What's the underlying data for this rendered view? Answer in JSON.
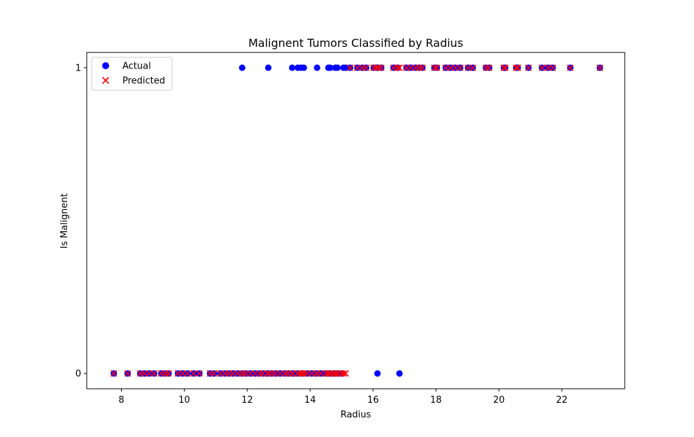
{
  "chart_data": {
    "type": "scatter",
    "title": "Malignent Tumors Classified by Radius",
    "xlabel": "Radius",
    "ylabel": "Is Malignent",
    "xlim": [
      6.9,
      24.0
    ],
    "ylim": [
      -0.05,
      1.05
    ],
    "xticks": [
      "8",
      "10",
      "12",
      "14",
      "16",
      "18",
      "20",
      "22"
    ],
    "yticks": [
      "0",
      "1"
    ],
    "grid": false,
    "legend_position": "top-left",
    "series": [
      {
        "name": "Actual",
        "marker": "circle",
        "color": "#0000ff",
        "points": [
          [
            11.84,
            1
          ],
          [
            12.67,
            1
          ],
          [
            13.43,
            1
          ],
          [
            13.61,
            1
          ],
          [
            13.71,
            1
          ],
          [
            13.8,
            1
          ],
          [
            14.22,
            1
          ],
          [
            14.58,
            1
          ],
          [
            14.64,
            1
          ],
          [
            14.8,
            1
          ],
          [
            14.87,
            1
          ],
          [
            15.06,
            1
          ],
          [
            15.13,
            1
          ],
          [
            15.27,
            1
          ],
          [
            15.5,
            1
          ],
          [
            15.66,
            1
          ],
          [
            15.78,
            1
          ],
          [
            16.02,
            1
          ],
          [
            16.11,
            1
          ],
          [
            16.16,
            1
          ],
          [
            16.26,
            1
          ],
          [
            16.65,
            1
          ],
          [
            16.78,
            1
          ],
          [
            17.06,
            1
          ],
          [
            17.2,
            1
          ],
          [
            17.35,
            1
          ],
          [
            17.47,
            1
          ],
          [
            17.57,
            1
          ],
          [
            17.95,
            1
          ],
          [
            18.03,
            1
          ],
          [
            18.31,
            1
          ],
          [
            18.46,
            1
          ],
          [
            18.61,
            1
          ],
          [
            18.77,
            1
          ],
          [
            19.02,
            1
          ],
          [
            19.17,
            1
          ],
          [
            19.59,
            1
          ],
          [
            19.69,
            1
          ],
          [
            20.16,
            1
          ],
          [
            20.2,
            1
          ],
          [
            20.55,
            1
          ],
          [
            20.6,
            1
          ],
          [
            20.94,
            1
          ],
          [
            21.37,
            1
          ],
          [
            21.56,
            1
          ],
          [
            21.71,
            1
          ],
          [
            22.27,
            1
          ],
          [
            23.21,
            1
          ],
          [
            16.14,
            0
          ],
          [
            16.84,
            0
          ],
          [
            7.76,
            0
          ],
          [
            8.2,
            0
          ],
          [
            8.6,
            0
          ],
          [
            8.73,
            0
          ],
          [
            8.88,
            0
          ],
          [
            9.04,
            0
          ],
          [
            9.27,
            0
          ],
          [
            9.4,
            0
          ],
          [
            9.5,
            0
          ],
          [
            9.8,
            0
          ],
          [
            9.95,
            0
          ],
          [
            10.1,
            0
          ],
          [
            10.3,
            0
          ],
          [
            10.48,
            0
          ],
          [
            10.82,
            0
          ],
          [
            10.95,
            0
          ],
          [
            11.15,
            0
          ],
          [
            11.3,
            0
          ],
          [
            11.42,
            0
          ],
          [
            11.55,
            0
          ],
          [
            11.7,
            0
          ],
          [
            11.85,
            0
          ],
          [
            11.95,
            0
          ],
          [
            12.1,
            0
          ],
          [
            12.25,
            0
          ],
          [
            12.4,
            0
          ],
          [
            12.5,
            0
          ],
          [
            12.65,
            0
          ],
          [
            12.78,
            0
          ],
          [
            12.9,
            0
          ],
          [
            13.05,
            0
          ],
          [
            13.2,
            0
          ],
          [
            13.3,
            0
          ],
          [
            13.45,
            0
          ],
          [
            13.6,
            0
          ],
          [
            13.75,
            0
          ],
          [
            13.9,
            0
          ],
          [
            14.05,
            0
          ],
          [
            14.2,
            0
          ],
          [
            14.35,
            0
          ],
          [
            14.5,
            0
          ],
          [
            14.62,
            0
          ],
          [
            14.75,
            0
          ],
          [
            14.88,
            0
          ],
          [
            15.0,
            0
          ]
        ]
      },
      {
        "name": "Predicted",
        "marker": "x",
        "color": "#ff0000",
        "points": [
          [
            15.27,
            1
          ],
          [
            15.5,
            1
          ],
          [
            15.66,
            1
          ],
          [
            15.78,
            1
          ],
          [
            16.02,
            1
          ],
          [
            16.11,
            1
          ],
          [
            16.16,
            1
          ],
          [
            16.26,
            1
          ],
          [
            16.65,
            1
          ],
          [
            16.78,
            1
          ],
          [
            16.84,
            1
          ],
          [
            17.06,
            1
          ],
          [
            17.2,
            1
          ],
          [
            17.35,
            1
          ],
          [
            17.47,
            1
          ],
          [
            17.57,
            1
          ],
          [
            17.95,
            1
          ],
          [
            18.03,
            1
          ],
          [
            18.31,
            1
          ],
          [
            18.46,
            1
          ],
          [
            18.61,
            1
          ],
          [
            18.77,
            1
          ],
          [
            19.02,
            1
          ],
          [
            19.17,
            1
          ],
          [
            19.59,
            1
          ],
          [
            19.69,
            1
          ],
          [
            20.16,
            1
          ],
          [
            20.2,
            1
          ],
          [
            20.55,
            1
          ],
          [
            20.6,
            1
          ],
          [
            20.94,
            1
          ],
          [
            21.37,
            1
          ],
          [
            21.56,
            1
          ],
          [
            21.71,
            1
          ],
          [
            22.27,
            1
          ],
          [
            23.21,
            1
          ],
          [
            7.76,
            0
          ],
          [
            8.2,
            0
          ],
          [
            8.6,
            0
          ],
          [
            8.73,
            0
          ],
          [
            8.88,
            0
          ],
          [
            9.04,
            0
          ],
          [
            9.27,
            0
          ],
          [
            9.4,
            0
          ],
          [
            9.5,
            0
          ],
          [
            9.8,
            0
          ],
          [
            9.95,
            0
          ],
          [
            10.1,
            0
          ],
          [
            10.3,
            0
          ],
          [
            10.48,
            0
          ],
          [
            10.82,
            0
          ],
          [
            10.95,
            0
          ],
          [
            11.15,
            0
          ],
          [
            11.3,
            0
          ],
          [
            11.42,
            0
          ],
          [
            11.55,
            0
          ],
          [
            11.7,
            0
          ],
          [
            11.84,
            0
          ],
          [
            11.85,
            0
          ],
          [
            11.95,
            0
          ],
          [
            12.1,
            0
          ],
          [
            12.25,
            0
          ],
          [
            12.4,
            0
          ],
          [
            12.5,
            0
          ],
          [
            12.65,
            0
          ],
          [
            12.67,
            0
          ],
          [
            12.78,
            0
          ],
          [
            12.9,
            0
          ],
          [
            13.05,
            0
          ],
          [
            13.2,
            0
          ],
          [
            13.3,
            0
          ],
          [
            13.43,
            0
          ],
          [
            13.45,
            0
          ],
          [
            13.6,
            0
          ],
          [
            13.61,
            0
          ],
          [
            13.71,
            0
          ],
          [
            13.75,
            0
          ],
          [
            13.8,
            0
          ],
          [
            13.9,
            0
          ],
          [
            14.05,
            0
          ],
          [
            14.2,
            0
          ],
          [
            14.22,
            0
          ],
          [
            14.35,
            0
          ],
          [
            14.5,
            0
          ],
          [
            14.58,
            0
          ],
          [
            14.62,
            0
          ],
          [
            14.64,
            0
          ],
          [
            14.75,
            0
          ],
          [
            14.8,
            0
          ],
          [
            14.87,
            0
          ],
          [
            14.88,
            0
          ],
          [
            15.0,
            0
          ],
          [
            15.06,
            0
          ],
          [
            15.13,
            0
          ]
        ]
      }
    ]
  }
}
